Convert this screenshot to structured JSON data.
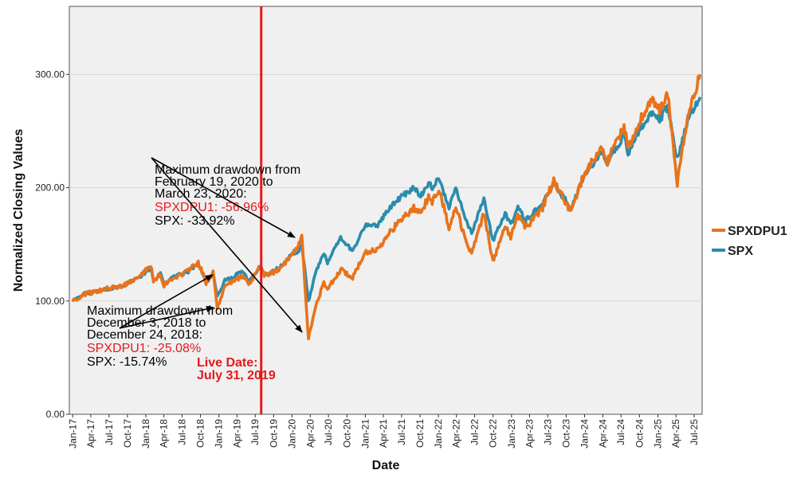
{
  "chart_data": {
    "type": "line",
    "xlabel": "Date",
    "ylabel": "Normalized Closing Values",
    "ylim": [
      0,
      360
    ],
    "xlim": [
      "2016-12-15",
      "2025-08-10"
    ],
    "y_ticks": [
      0,
      100,
      200,
      300
    ],
    "y_tick_labels": [
      "0.00",
      "100.00",
      "200.00",
      "300.00"
    ],
    "x_tick_labels": [
      "Jan-17",
      "Apr-17",
      "Jul-17",
      "Oct-17",
      "Jan-18",
      "Apr-18",
      "Jul-18",
      "Oct-18",
      "Jan-19",
      "Apr-19",
      "Jul-19",
      "Oct-19",
      "Jan-20",
      "Apr-20",
      "Jul-20",
      "Oct-20",
      "Jan-21",
      "Apr-21",
      "Jul-21",
      "Oct-21",
      "Jan-22",
      "Apr-22",
      "Jul-22",
      "Oct-22",
      "Jan-23",
      "Apr-23",
      "Jul-23",
      "Oct-23",
      "Jan-24",
      "Apr-24",
      "Jul-24",
      "Oct-24",
      "Jan-25",
      "Apr-25",
      "Jul-25"
    ],
    "x_tick_dates": [
      "2017-01-01",
      "2017-04-01",
      "2017-07-01",
      "2017-10-01",
      "2018-01-01",
      "2018-04-01",
      "2018-07-01",
      "2018-10-01",
      "2019-01-01",
      "2019-04-01",
      "2019-07-01",
      "2019-10-01",
      "2020-01-01",
      "2020-04-01",
      "2020-07-01",
      "2020-10-01",
      "2021-01-01",
      "2021-04-01",
      "2021-07-01",
      "2021-10-01",
      "2022-01-01",
      "2022-04-01",
      "2022-07-01",
      "2022-10-01",
      "2023-01-01",
      "2023-04-01",
      "2023-07-01",
      "2023-10-01",
      "2024-01-01",
      "2024-04-01",
      "2024-07-01",
      "2024-10-01",
      "2025-01-01",
      "2025-04-01",
      "2025-07-01"
    ],
    "grid": "horizontal",
    "legend_placement": "right",
    "series": [
      {
        "name": "SPX",
        "color": "#2b8cad",
        "points": [
          [
            "2017-01-01",
            100
          ],
          [
            "2017-03-01",
            106
          ],
          [
            "2017-06-01",
            110
          ],
          [
            "2017-09-01",
            113
          ],
          [
            "2017-12-01",
            121
          ],
          [
            "2018-01-26",
            129
          ],
          [
            "2018-02-08",
            117
          ],
          [
            "2018-03-15",
            124
          ],
          [
            "2018-04-02",
            116
          ],
          [
            "2018-06-01",
            122
          ],
          [
            "2018-08-01",
            126
          ],
          [
            "2018-09-20",
            132
          ],
          [
            "2018-10-29",
            118
          ],
          [
            "2018-11-15",
            121
          ],
          [
            "2018-12-03",
            124
          ],
          [
            "2018-12-24",
            105
          ],
          [
            "2019-01-31",
            118
          ],
          [
            "2019-04-30",
            126
          ],
          [
            "2019-06-03",
            117
          ],
          [
            "2019-07-26",
            131
          ],
          [
            "2019-08-15",
            124
          ],
          [
            "2019-10-01",
            126
          ],
          [
            "2019-11-29",
            134
          ],
          [
            "2019-12-31",
            141
          ],
          [
            "2020-01-31",
            143
          ],
          [
            "2020-02-19",
            150
          ],
          [
            "2020-03-23",
            100
          ],
          [
            "2020-04-30",
            126
          ],
          [
            "2020-06-08",
            143
          ],
          [
            "2020-06-26",
            134
          ],
          [
            "2020-08-31",
            156
          ],
          [
            "2020-10-30",
            144
          ],
          [
            "2020-12-31",
            167
          ],
          [
            "2021-03-04",
            167
          ],
          [
            "2021-04-30",
            182
          ],
          [
            "2021-06-30",
            192
          ],
          [
            "2021-08-31",
            200
          ],
          [
            "2021-10-04",
            193
          ],
          [
            "2021-11-18",
            205
          ],
          [
            "2021-12-01",
            198
          ],
          [
            "2022-01-03",
            210
          ],
          [
            "2022-02-23",
            182
          ],
          [
            "2022-03-29",
            200
          ],
          [
            "2022-05-20",
            170
          ],
          [
            "2022-06-16",
            160
          ],
          [
            "2022-08-16",
            190
          ],
          [
            "2022-09-30",
            153
          ],
          [
            "2022-11-30",
            178
          ],
          [
            "2022-12-28",
            167
          ],
          [
            "2023-02-02",
            183
          ],
          [
            "2023-03-13",
            171
          ],
          [
            "2023-05-31",
            185
          ],
          [
            "2023-07-31",
            203
          ],
          [
            "2023-10-27",
            182
          ],
          [
            "2023-12-29",
            210
          ],
          [
            "2024-03-28",
            232
          ],
          [
            "2024-04-19",
            220
          ],
          [
            "2024-07-16",
            247
          ],
          [
            "2024-08-05",
            230
          ],
          [
            "2024-09-30",
            251
          ],
          [
            "2024-12-06",
            268
          ],
          [
            "2025-01-10",
            260
          ],
          [
            "2025-02-19",
            271
          ],
          [
            "2025-04-08",
            225
          ],
          [
            "2025-05-30",
            260
          ],
          [
            "2025-07-31",
            280
          ]
        ]
      },
      {
        "name": "SPXDPU1",
        "color": "#e8731b",
        "points": [
          [
            "2017-01-01",
            100
          ],
          [
            "2017-03-01",
            106
          ],
          [
            "2017-06-01",
            110
          ],
          [
            "2017-09-01",
            113
          ],
          [
            "2017-12-01",
            122
          ],
          [
            "2018-01-26",
            132
          ],
          [
            "2018-02-08",
            116
          ],
          [
            "2018-03-15",
            124
          ],
          [
            "2018-04-02",
            114
          ],
          [
            "2018-06-01",
            121
          ],
          [
            "2018-08-01",
            127
          ],
          [
            "2018-09-20",
            134
          ],
          [
            "2018-10-29",
            116
          ],
          [
            "2018-11-15",
            119
          ],
          [
            "2018-12-03",
            126
          ],
          [
            "2018-12-24",
            94
          ],
          [
            "2019-01-31",
            113
          ],
          [
            "2019-04-30",
            122
          ],
          [
            "2019-06-03",
            115
          ],
          [
            "2019-07-26",
            130
          ],
          [
            "2019-08-15",
            123
          ],
          [
            "2019-10-01",
            125
          ],
          [
            "2019-11-29",
            133
          ],
          [
            "2019-12-31",
            142
          ],
          [
            "2020-01-31",
            147
          ],
          [
            "2020-02-19",
            156
          ],
          [
            "2020-03-23",
            67
          ],
          [
            "2020-04-30",
            96
          ],
          [
            "2020-06-08",
            116
          ],
          [
            "2020-06-26",
            110
          ],
          [
            "2020-08-31",
            128
          ],
          [
            "2020-10-30",
            120
          ],
          [
            "2020-12-31",
            143
          ],
          [
            "2021-03-04",
            145
          ],
          [
            "2021-04-30",
            160
          ],
          [
            "2021-06-30",
            172
          ],
          [
            "2021-08-31",
            182
          ],
          [
            "2021-10-04",
            178
          ],
          [
            "2021-11-18",
            193
          ],
          [
            "2021-12-01",
            186
          ],
          [
            "2022-01-03",
            200
          ],
          [
            "2022-02-23",
            165
          ],
          [
            "2022-03-29",
            184
          ],
          [
            "2022-05-20",
            150
          ],
          [
            "2022-06-16",
            142
          ],
          [
            "2022-08-16",
            178
          ],
          [
            "2022-09-30",
            135
          ],
          [
            "2022-11-30",
            166
          ],
          [
            "2022-12-28",
            157
          ],
          [
            "2023-02-02",
            176
          ],
          [
            "2023-03-13",
            165
          ],
          [
            "2023-05-31",
            180
          ],
          [
            "2023-07-31",
            206
          ],
          [
            "2023-10-27",
            178
          ],
          [
            "2023-12-29",
            212
          ],
          [
            "2024-03-28",
            236
          ],
          [
            "2024-04-19",
            222
          ],
          [
            "2024-07-16",
            254
          ],
          [
            "2024-08-05",
            235
          ],
          [
            "2024-09-30",
            258
          ],
          [
            "2024-12-06",
            278
          ],
          [
            "2025-01-10",
            268
          ],
          [
            "2025-02-19",
            282
          ],
          [
            "2025-04-08",
            204
          ],
          [
            "2025-05-30",
            262
          ],
          [
            "2025-07-31",
            300
          ]
        ]
      }
    ],
    "live_date": "2019-07-31",
    "live_line_color": "#e31a1c",
    "annotations": {
      "live_label": [
        "Live Date:",
        "July 31, 2019"
      ],
      "drawdown_2020": {
        "lines": [
          "Maximum drawdown from",
          "February 19, 2020 to",
          "March 23, 2020:"
        ],
        "spxdpu1": "SPXDPU1: -56.96%",
        "spx": "SPX: -33.92%"
      },
      "drawdown_2018": {
        "lines": [
          "Maximum drawdown from",
          "December 3, 2018 to",
          "December 24, 2018:"
        ],
        "spxdpu1": "SPXDPU1: -25.08%",
        "spx": "SPX: -15.74%"
      }
    },
    "colors": {
      "highlight": "#e31a1c",
      "panel_bg": "#f0f0f0",
      "grid": "#d6d6d6"
    }
  }
}
